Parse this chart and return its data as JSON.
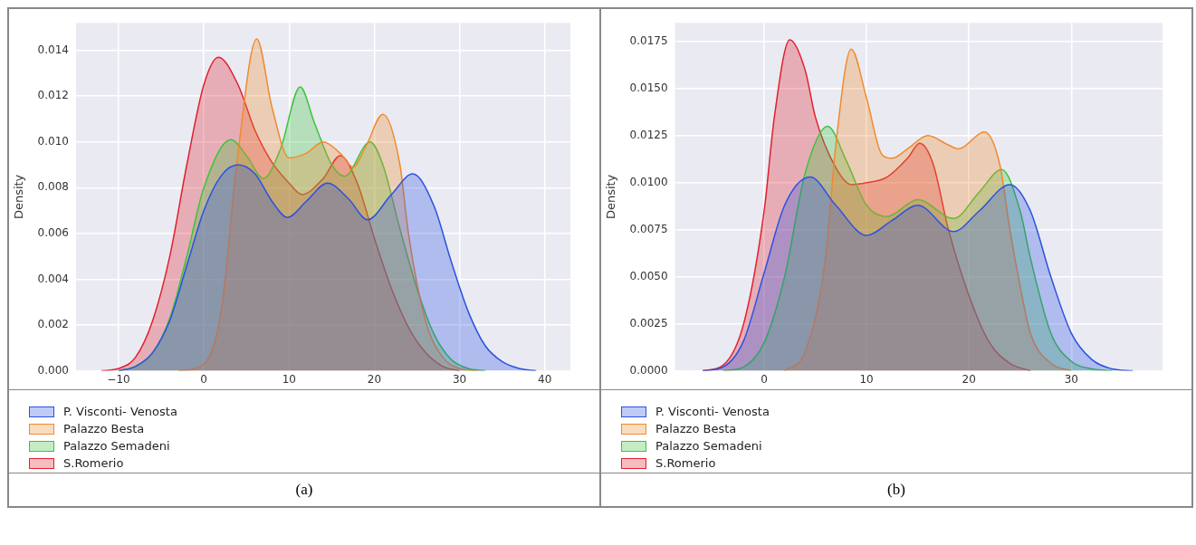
{
  "chart_data": [
    {
      "type": "area",
      "ylabel": "Density",
      "xlim": [
        -15,
        43
      ],
      "ylim": [
        0,
        0.0152
      ],
      "xticks": [
        {
          "value": -10,
          "label": "−10"
        },
        0,
        10,
        20,
        30,
        40
      ],
      "yticks": [
        {
          "value": 0,
          "label": "0.000"
        },
        {
          "value": 0.002,
          "label": "0.002"
        },
        {
          "value": 0.004,
          "label": "0.004"
        },
        {
          "value": 0.006,
          "label": "0.006"
        },
        {
          "value": 0.008,
          "label": "0.008"
        },
        {
          "value": 0.01,
          "label": "0.010"
        },
        {
          "value": 0.012,
          "label": "0.012"
        },
        {
          "value": 0.014,
          "label": "0.014"
        }
      ],
      "grid": true,
      "legend": "bottom",
      "annotations": [
        "(a)"
      ],
      "series": [
        {
          "name": "P. Visconti- Venosta",
          "color": "#2a52e0",
          "x": [
            -10,
            -8,
            -6,
            -4,
            -2,
            0,
            2,
            4,
            6,
            8,
            9.8,
            12,
            14.5,
            17,
            19.2,
            22,
            24.5,
            27,
            29,
            31,
            33,
            35,
            37,
            39
          ],
          "values": [
            0,
            0.0002,
            0.0008,
            0.0022,
            0.0046,
            0.007,
            0.0085,
            0.009,
            0.0086,
            0.0074,
            0.0067,
            0.0074,
            0.0082,
            0.0075,
            0.0066,
            0.0077,
            0.0086,
            0.0072,
            0.0048,
            0.0026,
            0.0011,
            0.0004,
            0.0001,
            0
          ]
        },
        {
          "name": "Palazzo Besta",
          "color": "#f08a2c",
          "x": [
            -3,
            0,
            2,
            4,
            6.2,
            8,
            10,
            12,
            14,
            16,
            17.5,
            19,
            21,
            23,
            24,
            26,
            28,
            30,
            32
          ],
          "values": [
            0,
            0.0003,
            0.0025,
            0.0095,
            0.0145,
            0.0115,
            0.0093,
            0.0095,
            0.01,
            0.0095,
            0.0089,
            0.0098,
            0.0112,
            0.009,
            0.006,
            0.0022,
            0.0006,
            0.0001,
            0
          ]
        },
        {
          "name": "Palazzo Semadeni",
          "color": "#3cc43c",
          "x": [
            -10,
            -8,
            -6,
            -4,
            -2,
            0,
            3.2,
            5,
            7,
            9,
            11.3,
            13,
            15,
            16.5,
            19.5,
            21,
            23,
            25,
            27,
            29,
            31,
            33
          ],
          "values": [
            0,
            0.0002,
            0.0008,
            0.0023,
            0.005,
            0.008,
            0.0101,
            0.0094,
            0.0084,
            0.0097,
            0.0124,
            0.0108,
            0.009,
            0.0085,
            0.01,
            0.009,
            0.0062,
            0.0036,
            0.0016,
            0.0005,
            0.0001,
            0
          ]
        },
        {
          "name": "S.Romerio",
          "color": "#e0202f",
          "x": [
            -12,
            -10,
            -8,
            -6,
            -4,
            -2,
            0,
            1.7,
            4,
            6,
            8,
            10,
            11.5,
            14,
            16,
            18,
            20,
            22,
            24,
            26,
            28,
            30
          ],
          "values": [
            0,
            0.0001,
            0.0006,
            0.0022,
            0.005,
            0.009,
            0.0125,
            0.0137,
            0.0125,
            0.0105,
            0.0091,
            0.0082,
            0.0077,
            0.0084,
            0.0094,
            0.0082,
            0.0058,
            0.0036,
            0.0019,
            0.0008,
            0.0002,
            0
          ]
        }
      ]
    },
    {
      "type": "area",
      "ylabel": "Density",
      "xlim": [
        -8.7,
        38.9
      ],
      "ylim": [
        0,
        0.0185
      ],
      "xticks": [
        0,
        10,
        20,
        30
      ],
      "yticks": [
        {
          "value": 0,
          "label": "0.0000"
        },
        {
          "value": 0.0025,
          "label": "0.0025"
        },
        {
          "value": 0.005,
          "label": "0.0050"
        },
        {
          "value": 0.0075,
          "label": "0.0075"
        },
        {
          "value": 0.01,
          "label": "0.0100"
        },
        {
          "value": 0.0125,
          "label": "0.0125"
        },
        {
          "value": 0.015,
          "label": "0.0150"
        },
        {
          "value": 0.0175,
          "label": "0.0175"
        }
      ],
      "grid": true,
      "legend": "bottom",
      "annotations": [
        "(b)"
      ],
      "series": [
        {
          "name": "P. Visconti- Venosta",
          "color": "#2a52e0",
          "x": [
            -6,
            -4,
            -2,
            0,
            2,
            4.5,
            7,
            10,
            12.5,
            15,
            18.5,
            21,
            24,
            26,
            28,
            30,
            32,
            34,
            36
          ],
          "values": [
            0,
            0.0002,
            0.0016,
            0.0052,
            0.0088,
            0.0103,
            0.0088,
            0.0072,
            0.008,
            0.0088,
            0.0074,
            0.0085,
            0.0099,
            0.0085,
            0.005,
            0.002,
            0.0006,
            0.0001,
            0
          ]
        },
        {
          "name": "Palazzo Besta",
          "color": "#f08a2c",
          "x": [
            2,
            4,
            6,
            7,
            8.5,
            10,
            11.5,
            12.5,
            14,
            16,
            18,
            19,
            21.5,
            23,
            24,
            25,
            26,
            28,
            30
          ],
          "values": [
            0,
            0.001,
            0.006,
            0.012,
            0.0171,
            0.0145,
            0.0115,
            0.0113,
            0.0118,
            0.0125,
            0.012,
            0.0118,
            0.0127,
            0.011,
            0.0075,
            0.0045,
            0.002,
            0.0004,
            0
          ]
        },
        {
          "name": "Palazzo Semadeni",
          "color": "#3cc43c",
          "x": [
            -4,
            -2,
            0,
            2,
            4,
            6.2,
            8,
            10,
            12,
            15,
            18.5,
            21,
            23.2,
            25,
            26,
            28,
            30,
            32,
            34
          ],
          "values": [
            0,
            0.0002,
            0.0015,
            0.005,
            0.0105,
            0.013,
            0.0112,
            0.0088,
            0.0082,
            0.0091,
            0.0081,
            0.0095,
            0.0107,
            0.0085,
            0.006,
            0.002,
            0.0005,
            0.0001,
            0
          ]
        },
        {
          "name": "S.Romerio",
          "color": "#e0202f",
          "x": [
            -6,
            -4,
            -2,
            0,
            1,
            2.5,
            4,
            5,
            7,
            8.5,
            10,
            12,
            14,
            15.2,
            16.5,
            18,
            20,
            22,
            24,
            26
          ],
          "values": [
            0,
            0.0003,
            0.0025,
            0.0085,
            0.0135,
            0.0176,
            0.016,
            0.0135,
            0.0108,
            0.0099,
            0.01,
            0.0103,
            0.0113,
            0.0121,
            0.011,
            0.0075,
            0.004,
            0.0015,
            0.0004,
            0
          ]
        }
      ]
    }
  ]
}
